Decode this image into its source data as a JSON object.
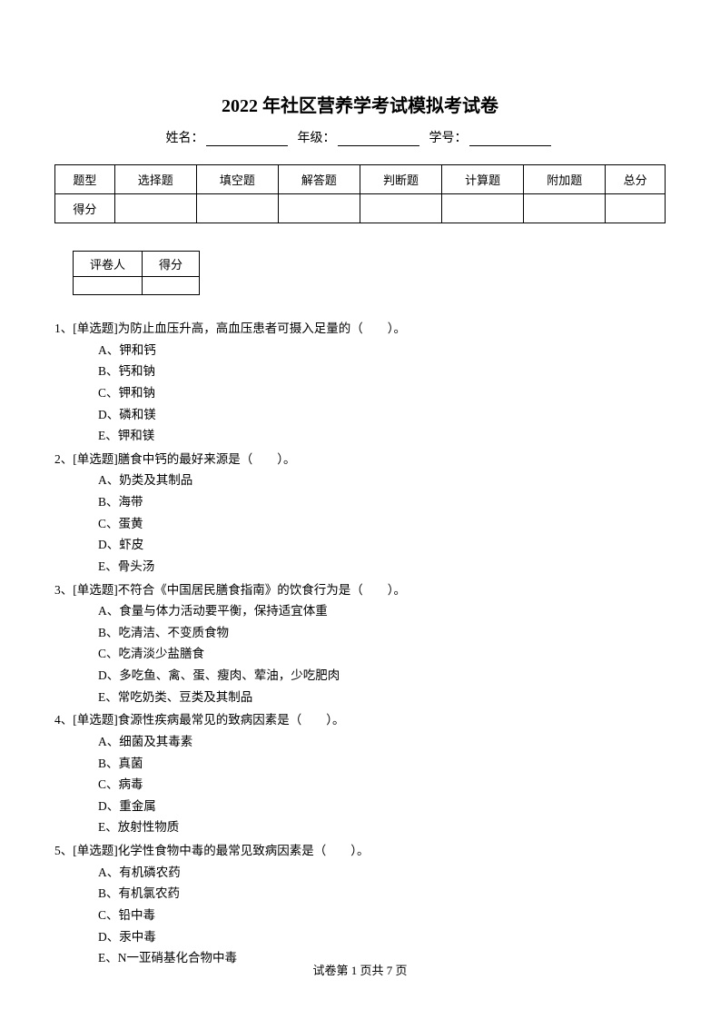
{
  "title": "2022 年社区营养学考试模拟考试卷",
  "info": {
    "name_label": "姓名：",
    "grade_label": "年级：",
    "id_label": "学号："
  },
  "score_table": {
    "headers": [
      "题型",
      "选择题",
      "填空题",
      "解答题",
      "判断题",
      "计算题",
      "附加题",
      "总分"
    ],
    "row_label": "得分"
  },
  "grader_table": {
    "headers": [
      "评卷人",
      "得分"
    ]
  },
  "questions": [
    {
      "num": "1、",
      "type": "[单选题]",
      "stem": "为防止血压升高，高血压患者可摄入足量的（　　）。",
      "options": [
        "A、钾和钙",
        "B、钙和钠",
        "C、钾和钠",
        "D、磷和镁",
        "E、钾和镁"
      ]
    },
    {
      "num": "2、",
      "type": "[单选题]",
      "stem": "膳食中钙的最好来源是（　　）。",
      "options": [
        "A、奶类及其制品",
        "B、海带",
        "C、蛋黄",
        "D、虾皮",
        "E、骨头汤"
      ]
    },
    {
      "num": "3、",
      "type": "[单选题]",
      "stem": "不符合《中国居民膳食指南》的饮食行为是（　　）。",
      "options": [
        "A、食量与体力活动要平衡，保持适宜体重",
        "B、吃清洁、不变质食物",
        "C、吃清淡少盐膳食",
        "D、多吃鱼、禽、蛋、瘦肉、荤油，少吃肥肉",
        "E、常吃奶类、豆类及其制品"
      ]
    },
    {
      "num": "4、",
      "type": "[单选题]",
      "stem": "食源性疾病最常见的致病因素是（　　）。",
      "options": [
        "A、细菌及其毒素",
        "B、真菌",
        "C、病毒",
        "D、重金属",
        "E、放射性物质"
      ]
    },
    {
      "num": "5、",
      "type": "[单选题]",
      "stem": "化学性食物中毒的最常见致病因素是（　　）。",
      "options": [
        "A、有机磷农药",
        "B、有机氯农药",
        "C、铅中毒",
        "D、汞中毒",
        "E、N一亚硝基化合物中毒"
      ]
    }
  ],
  "footer": {
    "prefix": "试卷第 ",
    "page": "1",
    "middle": " 页共 ",
    "total": "7",
    "suffix": " 页"
  }
}
